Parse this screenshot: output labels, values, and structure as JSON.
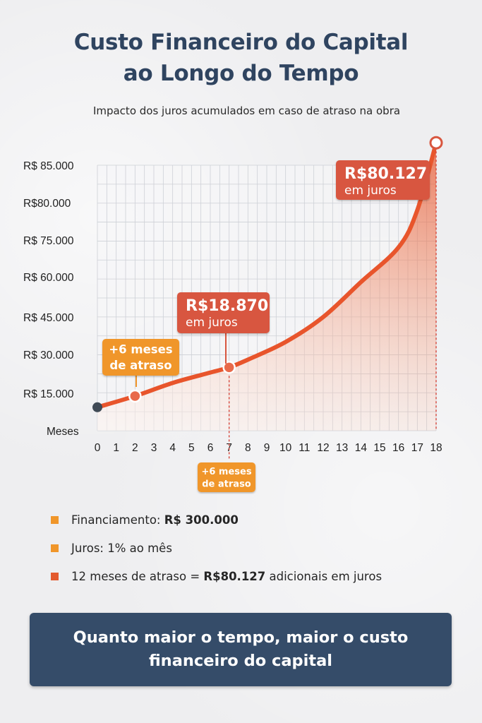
{
  "title": "Custo Financeiro do Capital ao Longo do Tempo",
  "subtitle": "Impacto dos juros acumulados em caso de atraso na obra",
  "colors": {
    "title": "#2f4460",
    "curve": "#e8552c",
    "point_fill": "#e86a4b",
    "callout_red": "#d8563f",
    "callout_orange": "#f0962a",
    "start_point": "#3f4a55",
    "banner": "#354c69"
  },
  "chart_data": {
    "type": "area",
    "xlabel": "Meses",
    "x_ticks": [
      0,
      1,
      2,
      3,
      4,
      5,
      6,
      7,
      8,
      9,
      10,
      11,
      12,
      13,
      14,
      15,
      16,
      17,
      18
    ],
    "y_tick_labels": [
      "R$ 15.000",
      "R$ 30.000",
      "R$ 45.000",
      "R$ 60.000",
      "R$ 75.000",
      "R$80.000",
      "R$ 85.000"
    ],
    "grid": true,
    "series": [
      {
        "x": [
          0,
          2,
          4,
          6,
          7,
          8,
          10,
          12,
          14,
          16,
          17,
          18
        ],
        "y": [
          10000,
          14000,
          19000,
          23000,
          25000,
          28000,
          35000,
          45000,
          58000,
          72000,
          79000,
          88000
        ]
      }
    ],
    "highlight_points": [
      {
        "x": 0,
        "y": 10000,
        "style": "start"
      },
      {
        "x": 2,
        "y": 14000,
        "style": "callout"
      },
      {
        "x": 7,
        "y": 25000,
        "style": "callout"
      },
      {
        "x": 18,
        "y": 88000,
        "style": "callout"
      }
    ],
    "annotations": [
      {
        "id": "a1",
        "lines": [
          "+6 meses",
          "de atraso"
        ],
        "x": 2,
        "color": "orange"
      },
      {
        "id": "a2",
        "lines": [
          "R$18.870",
          "em juros"
        ],
        "x": 7,
        "color": "red"
      },
      {
        "id": "a3",
        "lines": [
          "R$80.127",
          "em juros"
        ],
        "x": 18,
        "color": "red"
      },
      {
        "id": "a4",
        "lines": [
          "+6 meses",
          "de atraso"
        ],
        "x": 7,
        "color": "orange",
        "below_axis": true
      }
    ]
  },
  "legend": [
    {
      "text": "Financiamento: ",
      "bold": "R$ 300.000",
      "after": "",
      "color": "#f0962a"
    },
    {
      "text": "Juros: 1% ao mês",
      "bold": "",
      "after": "",
      "color": "#f0962a"
    },
    {
      "text": "12 meses de atraso = ",
      "bold": "R$80.127",
      "after": " adicionais em juros",
      "color": "#e35a2f"
    }
  ],
  "banner": "Quanto maior o tempo, maior o custo financeiro do capital"
}
